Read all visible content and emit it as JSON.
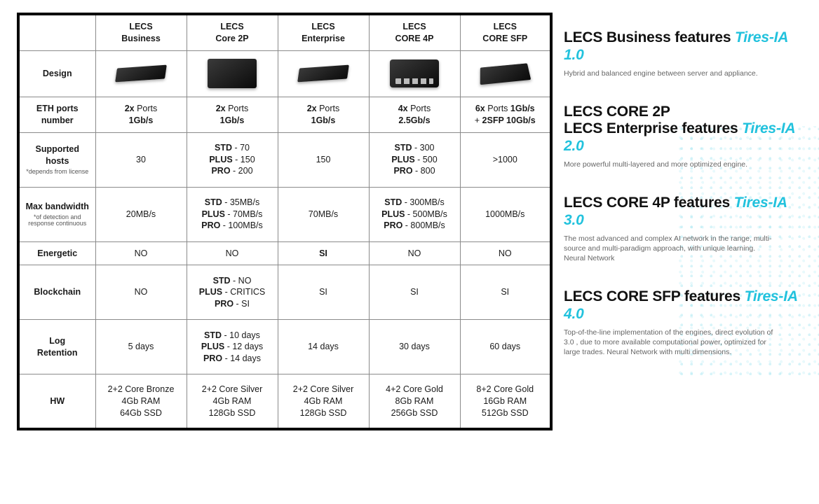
{
  "table": {
    "columns": [
      {
        "id": "business",
        "line1": "LECS",
        "line2": "Business"
      },
      {
        "id": "core2p",
        "line1": "LECS",
        "line2": "Core 2P"
      },
      {
        "id": "enterprise",
        "line1": "LECS",
        "line2": "Enterprise"
      },
      {
        "id": "core4p",
        "line1": "LECS",
        "line2": "CORE 4P"
      },
      {
        "id": "coresfp",
        "line1": "LECS",
        "line2": "CORE SFP"
      }
    ],
    "rows": {
      "design": {
        "label": "Design"
      },
      "eth": {
        "label_l1": "ETH ports",
        "label_l2": "number",
        "business": "<span class='b'>2x</span> Ports<br><span class='b'>1Gb/s</span>",
        "core2p": "<span class='b'>2x</span> Ports<br><span class='b'>1Gb/s</span>",
        "enterprise": "<span class='b'>2x</span> Ports<br><span class='b'>1Gb/s</span>",
        "core4p": "<span class='b'>4x</span> Ports<br><span class='b'>2.5Gb/s</span>",
        "coresfp": "<span class='b'>6x</span> Ports <span class='b'>1Gb/s</span><br>+ <span class='b'>2SFP 10Gb/s</span>"
      },
      "hosts": {
        "label": "Supported hosts",
        "label_note": "*depends from license",
        "business": "30",
        "core2p": "<span class='b'>STD</span> - 70<br><span class='b'>PLUS</span> - 150<br><span class='b'>PRO</span> - 200",
        "enterprise": "150",
        "core4p": "<span class='b'>STD</span> - 300<br><span class='b'>PLUS</span> - 500<br><span class='b'>PRO</span> - 800",
        "coresfp": ">1000"
      },
      "bw": {
        "label": "Max bandwidth",
        "label_note": "*of detection and response continuous",
        "business": "20MB/s",
        "core2p": "<span class='b'>STD</span> - 35MB/s<br><span class='b'>PLUS</span> - 70MB/s<br><span class='b'>PRO</span> - 100MB/s",
        "enterprise": "70MB/s",
        "core4p": "<span class='b'>STD</span> - 300MB/s<br><span class='b'>PLUS</span> - 500MB/s<br><span class='b'>PRO</span> - 800MB/s",
        "coresfp": "1000MB/s"
      },
      "energetic": {
        "label": "Energetic",
        "business": "NO",
        "core2p": "NO",
        "enterprise": "<span class='si'>SI</span>",
        "core4p": "NO",
        "coresfp": "NO"
      },
      "blockchain": {
        "label": "Blockchain",
        "business": "NO",
        "core2p": "<span class='b'>STD</span> - NO<br><span class='b'>PLUS</span> - CRITICS<br><span class='b'>PRO</span> - SI",
        "enterprise": "SI",
        "core4p": "SI",
        "coresfp": "SI"
      },
      "log": {
        "label_l1": "Log",
        "label_l2": "Retention",
        "business": "5 days",
        "core2p": "<span class='b'>STD</span> - 10 days<br><span class='b'>PLUS</span> - 12 days<br><span class='b'>PRO</span> - 14 days",
        "enterprise": "14 days",
        "core4p": "30 days",
        "coresfp": "60 days"
      },
      "hw": {
        "label": "HW",
        "business": "2+2 Core Bronze<br>4Gb RAM<br>64Gb SSD",
        "core2p": "2+2 Core Silver<br>4Gb RAM<br>128Gb SSD",
        "enterprise": "2+2 Core Silver<br>4Gb RAM<br>128Gb SSD",
        "core4p": "4+2 Core Gold<br>8Gb RAM<br>256Gb SSD",
        "coresfp": "8+2 Core Gold<br>16Gb RAM<br>512Gb SSD"
      }
    }
  },
  "features": [
    {
      "title_plain": "LECS Business features ",
      "title_accent": "Tires-IA 1.0",
      "desc": "Hybrid and balanced engine between server and appliance."
    },
    {
      "title_plain": "LECS CORE 2P\nLECS Enterprise features ",
      "title_accent": "Tires-IA 2.0",
      "desc": "More powerful multi-layered and more optimized engine."
    },
    {
      "title_plain": "LECS CORE 4P features ",
      "title_accent": "Tires-IA 3.0",
      "desc": "The most advanced and complex AI network in the range, multi-source and multi-paradigm approach, with unique learning. Neural Network"
    },
    {
      "title_plain": "LECS CORE SFP features ",
      "title_accent": "Tires-IA 4.0",
      "desc": "Top-of-the-line implementation of the engines, direct evolution of 3.0 , due to more available computational power, optimized for large trades. Neural Network with multi dimensions."
    }
  ],
  "colors": {
    "accent": "#22c2dd",
    "border": "#000000",
    "cell_border": "#8a8a8a",
    "text": "#1a1a1a"
  }
}
